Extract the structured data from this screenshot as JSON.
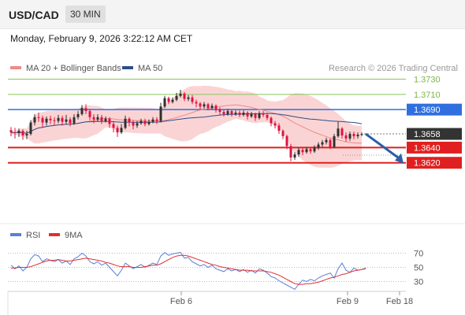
{
  "header": {
    "pair": "USD/CAD",
    "timeframe": "30 MIN"
  },
  "datetime": "Monday, February 9, 2026 3:22:12 AM CET",
  "legend": {
    "bb_label": "MA 20 + Bollinger Bands",
    "ma50_label": "MA 50",
    "credit": "Research © 2026 Trading Central",
    "rsi_label": "RSI",
    "rsi_ma_label": "9MA"
  },
  "colors": {
    "up": "#2f2f2f",
    "down": "#e0123f",
    "resistance": "#2f6fe0",
    "support": "#e02020",
    "target": "#88c45a",
    "band_fill": "#f9c9c9",
    "ma20": "#ef8a8a",
    "ma50": "#2f4d8a",
    "rsi": "#5a7fd6",
    "rsi_ma": "#e03030",
    "arrow": "#2a5faa"
  },
  "chart_data": [
    {
      "type": "candlestick",
      "ylim": [
        1.3598,
        1.3753
      ],
      "x_ticks": [
        "Feb 6",
        "Feb 9",
        "Feb 18"
      ],
      "levels": [
        {
          "value": 1.373,
          "label": "1.3730",
          "kind": "target"
        },
        {
          "value": 1.371,
          "label": "1.3710",
          "kind": "target"
        },
        {
          "value": 1.369,
          "label": "1.3690",
          "kind": "resistance"
        },
        {
          "value": 1.3658,
          "label": "1.3658",
          "kind": "last"
        },
        {
          "value": 1.364,
          "label": "1.3640",
          "kind": "support"
        },
        {
          "value": 1.362,
          "label": "1.3620",
          "kind": "support"
        }
      ],
      "forecast_arrow": {
        "from": 1.3658,
        "to": 1.362
      },
      "candles": [
        [
          1.3663,
          1.366,
          1.3667,
          1.3655
        ],
        [
          1.366,
          1.3659,
          1.3666,
          1.3652
        ],
        [
          1.3659,
          1.3662,
          1.3665,
          1.3654
        ],
        [
          1.3662,
          1.3656,
          1.3664,
          1.365
        ],
        [
          1.3656,
          1.3658,
          1.3662,
          1.3651
        ],
        [
          1.3658,
          1.3673,
          1.3676,
          1.3656
        ],
        [
          1.3673,
          1.368,
          1.3684,
          1.3669
        ],
        [
          1.368,
          1.3679,
          1.3686,
          1.3674
        ],
        [
          1.3679,
          1.3673,
          1.3682,
          1.3667
        ],
        [
          1.3673,
          1.3678,
          1.3681,
          1.3669
        ],
        [
          1.3678,
          1.3676,
          1.3682,
          1.3671
        ],
        [
          1.3676,
          1.3675,
          1.368,
          1.367
        ],
        [
          1.3675,
          1.3679,
          1.3683,
          1.3672
        ],
        [
          1.3679,
          1.3674,
          1.3682,
          1.3669
        ],
        [
          1.3674,
          1.3677,
          1.3683,
          1.3671
        ],
        [
          1.3677,
          1.3672,
          1.368,
          1.3668
        ],
        [
          1.3672,
          1.368,
          1.3684,
          1.367
        ],
        [
          1.368,
          1.3684,
          1.3688,
          1.3677
        ],
        [
          1.3684,
          1.3692,
          1.3696,
          1.3682
        ],
        [
          1.3692,
          1.3688,
          1.3697,
          1.3684
        ],
        [
          1.3688,
          1.368,
          1.3691,
          1.3676
        ],
        [
          1.368,
          1.3677,
          1.3684,
          1.3672
        ],
        [
          1.3677,
          1.368,
          1.3684,
          1.3674
        ],
        [
          1.368,
          1.3675,
          1.3683,
          1.3671
        ],
        [
          1.3675,
          1.3678,
          1.3681,
          1.3673
        ],
        [
          1.3678,
          1.3671,
          1.368,
          1.3666
        ],
        [
          1.3671,
          1.3666,
          1.3675,
          1.366
        ],
        [
          1.3666,
          1.366,
          1.3669,
          1.3654
        ],
        [
          1.366,
          1.3666,
          1.3671,
          1.3658
        ],
        [
          1.3666,
          1.3678,
          1.3682,
          1.3664
        ],
        [
          1.3678,
          1.3673,
          1.368,
          1.3668
        ],
        [
          1.3673,
          1.3669,
          1.3676,
          1.3664
        ],
        [
          1.3669,
          1.3672,
          1.3675,
          1.3666
        ],
        [
          1.3672,
          1.3675,
          1.3678,
          1.367
        ],
        [
          1.3675,
          1.3671,
          1.3678,
          1.3668
        ],
        [
          1.3671,
          1.3674,
          1.3677,
          1.3669
        ],
        [
          1.3674,
          1.3677,
          1.368,
          1.3672
        ],
        [
          1.3677,
          1.3675,
          1.368,
          1.3671
        ],
        [
          1.3675,
          1.3694,
          1.3699,
          1.3673
        ],
        [
          1.3694,
          1.3705,
          1.3708,
          1.3692
        ],
        [
          1.3705,
          1.37,
          1.3707,
          1.3697
        ],
        [
          1.37,
          1.3703,
          1.3706,
          1.3698
        ],
        [
          1.3703,
          1.3708,
          1.3712,
          1.3701
        ],
        [
          1.3708,
          1.3711,
          1.3716,
          1.3706
        ],
        [
          1.3711,
          1.3704,
          1.3713,
          1.3701
        ],
        [
          1.3704,
          1.3706,
          1.3709,
          1.3701
        ],
        [
          1.3706,
          1.37,
          1.3709,
          1.3697
        ],
        [
          1.37,
          1.3698,
          1.3703,
          1.3693
        ],
        [
          1.3698,
          1.3694,
          1.37,
          1.369
        ],
        [
          1.3694,
          1.3697,
          1.37,
          1.3691
        ],
        [
          1.3697,
          1.3692,
          1.3699,
          1.3689
        ],
        [
          1.3692,
          1.3695,
          1.3698,
          1.369
        ],
        [
          1.3695,
          1.369,
          1.3697,
          1.3686
        ],
        [
          1.369,
          1.3687,
          1.3693,
          1.3683
        ],
        [
          1.3687,
          1.3684,
          1.369,
          1.3681
        ],
        [
          1.3684,
          1.3688,
          1.3691,
          1.3682
        ],
        [
          1.3688,
          1.3684,
          1.369,
          1.3681
        ],
        [
          1.3684,
          1.3686,
          1.3689,
          1.3682
        ],
        [
          1.3686,
          1.3683,
          1.3689,
          1.368
        ],
        [
          1.3683,
          1.3686,
          1.3689,
          1.3681
        ],
        [
          1.3686,
          1.3681,
          1.3688,
          1.3677
        ],
        [
          1.3681,
          1.3684,
          1.3687,
          1.3679
        ],
        [
          1.3684,
          1.3679,
          1.3686,
          1.3675
        ],
        [
          1.3679,
          1.3685,
          1.3688,
          1.3677
        ],
        [
          1.3685,
          1.3683,
          1.3688,
          1.368
        ],
        [
          1.3683,
          1.3679,
          1.3686,
          1.3676
        ],
        [
          1.3679,
          1.3672,
          1.3681,
          1.3668
        ],
        [
          1.3672,
          1.3669,
          1.3675,
          1.3665
        ],
        [
          1.3669,
          1.3662,
          1.3672,
          1.3658
        ],
        [
          1.3662,
          1.3655,
          1.3664,
          1.3651
        ],
        [
          1.3655,
          1.3642,
          1.3657,
          1.3638
        ],
        [
          1.3642,
          1.3627,
          1.3645,
          1.3622
        ],
        [
          1.3627,
          1.3631,
          1.3634,
          1.3624
        ],
        [
          1.3631,
          1.3637,
          1.364,
          1.3628
        ],
        [
          1.3637,
          1.3634,
          1.364,
          1.363
        ],
        [
          1.3634,
          1.3638,
          1.3641,
          1.3632
        ],
        [
          1.3638,
          1.3635,
          1.3641,
          1.3632
        ],
        [
          1.3635,
          1.364,
          1.3643,
          1.3633
        ],
        [
          1.364,
          1.3644,
          1.3647,
          1.3637
        ],
        [
          1.3644,
          1.3647,
          1.365,
          1.3641
        ],
        [
          1.3647,
          1.365,
          1.3653,
          1.3644
        ],
        [
          1.365,
          1.3641,
          1.3652,
          1.3638
        ],
        [
          1.3641,
          1.3655,
          1.3658,
          1.3639
        ],
        [
          1.3655,
          1.3665,
          1.3674,
          1.3653
        ],
        [
          1.3665,
          1.3656,
          1.3667,
          1.3652
        ],
        [
          1.3656,
          1.3652,
          1.366,
          1.3648
        ],
        [
          1.3652,
          1.3658,
          1.3661,
          1.3649
        ],
        [
          1.3658,
          1.3655,
          1.3661,
          1.3651
        ],
        [
          1.3655,
          1.3657,
          1.366,
          1.3652
        ],
        [
          1.3657,
          1.3658,
          1.366,
          1.3655
        ]
      ]
    },
    {
      "type": "line",
      "title": "RSI",
      "ylim": [
        15,
        80
      ],
      "y_ticks": [
        "70",
        "50",
        "30"
      ],
      "series": [
        {
          "name": "RSI",
          "values": [
            53,
            48,
            52,
            45,
            50,
            62,
            68,
            66,
            58,
            62,
            60,
            58,
            61,
            56,
            59,
            54,
            62,
            65,
            70,
            66,
            58,
            55,
            58,
            53,
            56,
            50,
            44,
            38,
            46,
            56,
            52,
            48,
            51,
            54,
            50,
            53,
            56,
            54,
            66,
            71,
            67,
            69,
            70,
            71,
            63,
            64,
            58,
            55,
            52,
            54,
            50,
            53,
            48,
            46,
            44,
            48,
            45,
            47,
            44,
            47,
            43,
            46,
            42,
            48,
            46,
            42,
            37,
            35,
            31,
            28,
            25,
            22,
            19,
            26,
            32,
            30,
            33,
            31,
            35,
            38,
            40,
            42,
            35,
            48,
            56,
            46,
            43,
            49,
            46,
            47,
            49
          ]
        },
        {
          "name": "9MA",
          "values": [
            49,
            49,
            50,
            50,
            50,
            51,
            53,
            55,
            57,
            59,
            60,
            60,
            61,
            60,
            59,
            59,
            60,
            61,
            62,
            63,
            62,
            61,
            60,
            59,
            57,
            56,
            54,
            52,
            51,
            51,
            51,
            50,
            50,
            50,
            51,
            52,
            53,
            53,
            55,
            58,
            61,
            64,
            66,
            67,
            67,
            66,
            64,
            62,
            60,
            58,
            56,
            54,
            53,
            51,
            50,
            49,
            48,
            47,
            46,
            46,
            46,
            45,
            45,
            45,
            45,
            44,
            43,
            41,
            39,
            36,
            33,
            30,
            27,
            26,
            26,
            27,
            27,
            28,
            29,
            31,
            33,
            35,
            36,
            38,
            40,
            41,
            43,
            45,
            46,
            47,
            48
          ]
        }
      ]
    }
  ]
}
